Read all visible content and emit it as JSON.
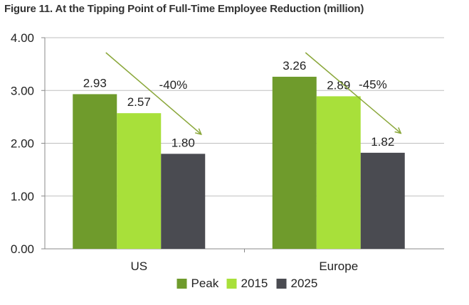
{
  "figure": {
    "title": "Figure 11. At the Tipping Point of Full-Time Employee Reduction (million)"
  },
  "chart_data": {
    "type": "bar",
    "title": "Figure 11. At the Tipping Point of Full-Time Employee Reduction (million)",
    "xlabel": "",
    "ylabel": "",
    "categories": [
      "US",
      "Europe"
    ],
    "series": [
      {
        "name": "Peak",
        "values": [
          2.93,
          3.26
        ],
        "value_labels": [
          "2.93",
          "3.26"
        ],
        "color": "#6f9b2c"
      },
      {
        "name": "2015",
        "values": [
          2.57,
          2.89
        ],
        "value_labels": [
          "2.57",
          "2.89"
        ],
        "color": "#a8e03a"
      },
      {
        "name": "2025",
        "values": [
          1.8,
          1.82
        ],
        "value_labels": [
          "1.80",
          "1.82"
        ],
        "color": "#4a4b51"
      }
    ],
    "ylim": [
      0,
      4
    ],
    "yticks": [
      0,
      1,
      2,
      3,
      4
    ],
    "ytick_labels": [
      "0.00",
      "1.00",
      "2.00",
      "3.00",
      "4.00"
    ],
    "grid": "horizontal",
    "legend": "bottom-center",
    "annotations": [
      {
        "category": "US",
        "text": "-40%",
        "color": "#8aa73a"
      },
      {
        "category": "Europe",
        "text": "-45%",
        "color": "#8aa73a"
      }
    ],
    "colors": {
      "axis": "#888888",
      "grid": "#bfbfbf"
    }
  }
}
